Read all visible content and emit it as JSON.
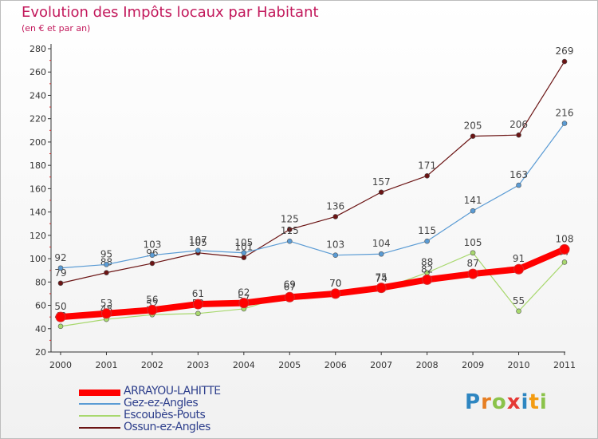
{
  "header": {
    "title": "Evolution des Impôts locaux par Habitant",
    "subtitle": "(en € et par an)"
  },
  "brand": {
    "letters": [
      "P",
      "r",
      "o",
      "x",
      "i",
      "t",
      "i"
    ],
    "colors": [
      "#2e86c1",
      "#e67e22",
      "#8bc34a",
      "#e53935",
      "#2e86c1",
      "#f39c12",
      "#8bc34a"
    ]
  },
  "chart_data": {
    "type": "line",
    "title": "Evolution des Impôts locaux par Habitant",
    "subtitle": "(en € et par an)",
    "xlabel": "",
    "ylabel": "",
    "x": [
      "2000",
      "2001",
      "2002",
      "2003",
      "2004",
      "2005",
      "2006",
      "2007",
      "2008",
      "2009",
      "2010",
      "2011"
    ],
    "ylim": [
      20,
      280
    ],
    "yticks": [
      20,
      40,
      60,
      80,
      100,
      120,
      140,
      160,
      180,
      200,
      220,
      240,
      260,
      280
    ],
    "grid": false,
    "legend_position": "bottom-left",
    "series": [
      {
        "name": "Ossun-ez-Angles",
        "color": "#6b1414",
        "width": 1.2,
        "values": [
          79,
          88,
          96,
          105,
          101,
          125,
          136,
          157,
          171,
          205,
          206,
          269
        ]
      },
      {
        "name": "Gez-ez-Angles",
        "color": "#5a9bd4",
        "width": 1.2,
        "values": [
          92,
          95,
          103,
          107,
          105,
          115,
          103,
          104,
          115,
          141,
          163,
          216
        ]
      },
      {
        "name": "Escoubès-Pouts",
        "color": "#a8d86e",
        "width": 1.2,
        "values": [
          42,
          48,
          52,
          53,
          57,
          69,
          70,
          74,
          88,
          105,
          55,
          97
        ]
      },
      {
        "name": "ARRAYOU-LAHITTE",
        "color": "#ff0000",
        "width": 8,
        "values": [
          50,
          53,
          56,
          61,
          62,
          67,
          70,
          75,
          82,
          87,
          91,
          108
        ]
      }
    ],
    "legend_order": [
      "ARRAYOU-LAHITTE",
      "Gez-ez-Angles",
      "Escoubès-Pouts",
      "Ossun-ez-Angles"
    ]
  }
}
